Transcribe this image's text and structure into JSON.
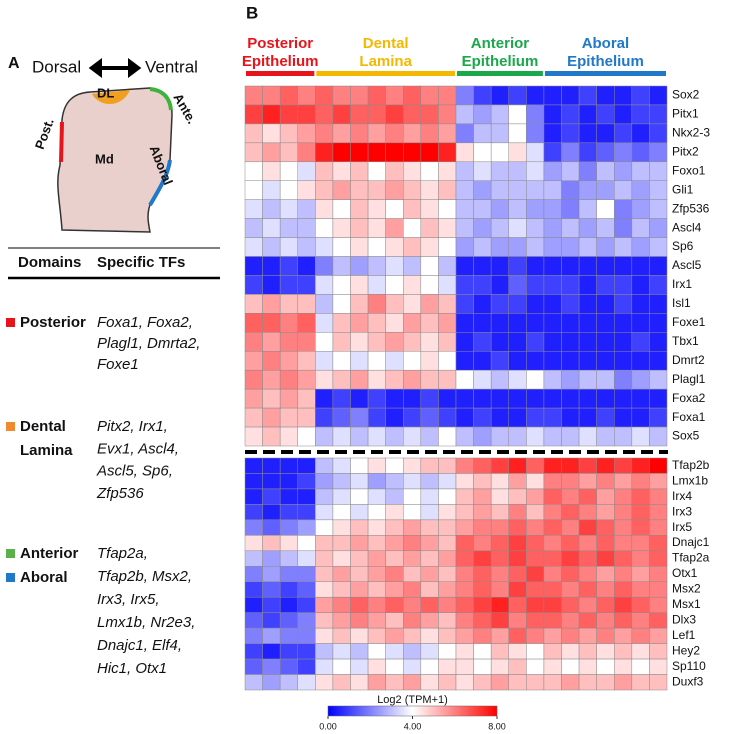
{
  "panel_a": {
    "label": "A",
    "axis": {
      "left": "Dorsal",
      "right": "Ventral"
    },
    "diagram": {
      "dl": "DL",
      "anterior": "Ante.",
      "posterior": "Post.",
      "md": "Md",
      "aboral": "Aboral"
    },
    "table": {
      "headers": [
        "Domains",
        "Specific TFs"
      ],
      "rows": [
        {
          "domains": [
            {
              "name": [
                "Posterior"
              ],
              "color": "#e8141c"
            }
          ],
          "tfs": [
            "Foxa1, Foxa2,",
            "Plagl1, Dmrta2,",
            "Foxe1"
          ]
        },
        {
          "domains": [
            {
              "name": [
                "Dental",
                "Lamina"
              ],
              "color": "#f08a2c"
            }
          ],
          "tfs": [
            "Pitx2, Irx1,",
            "Evx1, Ascl4,",
            "Ascl5, Sp6,",
            "Zfp536"
          ]
        },
        {
          "domains": [
            {
              "name": [
                "Anterior"
              ],
              "color": "#5ab14a"
            },
            {
              "name": [
                "Aboral"
              ],
              "color": "#1f78c8"
            }
          ],
          "tfs": [
            "Tfap2a,",
            "Tfap2b, Msx2,",
            "Irx3, Irx5,",
            "Lmx1b, Nr2e3,",
            "Dnajc1, Elf4,",
            "Hic1, Otx1"
          ]
        }
      ]
    }
  },
  "chart_data": {
    "type": "heatmap",
    "label": "B",
    "groups": [
      {
        "name": [
          "Posterior",
          "Epithelium"
        ],
        "color": "#e8141c",
        "columns": 4
      },
      {
        "name": [
          "Dental",
          "Lamina"
        ],
        "color": "#f5b800",
        "columns": 8
      },
      {
        "name": [
          "Anterior",
          "Epithelium"
        ],
        "color": "#1aa84a",
        "columns": 5
      },
      {
        "name": [
          "Aboral",
          "Epithelium"
        ],
        "color": "#1f78c8",
        "columns": 7
      }
    ],
    "colormap": [
      "#0000ff",
      "#ffffff",
      "#ff0000"
    ],
    "clim": [
      0,
      8
    ],
    "cticks": [
      {
        "value": 0,
        "label": "0.00"
      },
      {
        "value": 4,
        "label": "4.00"
      },
      {
        "value": 8,
        "label": "8.00"
      }
    ],
    "colorbar_label": "Log2 (TPM+1)",
    "blocks": [
      {
        "rows": [
          "Sox2",
          "Pitx1",
          "Nkx2-3",
          "Pitx2",
          "Foxo1",
          "Gli1",
          "Zfp536",
          "Ascl4",
          "Sp6",
          "Ascl5",
          "Irx1",
          "Isl1",
          "Foxe1",
          "Tbx1",
          "Dmrt2",
          "Plagl1",
          "Foxa2",
          "Foxa1",
          "Sox5"
        ],
        "values": [
          [
            6,
            6,
            6.5,
            6,
            6.5,
            6,
            6,
            6.5,
            6,
            6.5,
            6,
            6,
            2,
            1,
            0.5,
            1,
            0.5,
            0.5,
            0.5,
            1,
            0.5,
            0.5,
            1,
            0.5
          ],
          [
            7,
            7.5,
            7,
            7,
            6.5,
            7,
            6.5,
            6.5,
            7,
            6.5,
            6.5,
            6,
            3,
            2.5,
            3,
            4,
            2,
            0.5,
            1,
            0.5,
            1,
            0.5,
            1,
            1
          ],
          [
            5,
            4.5,
            5,
            5.5,
            6,
            5.5,
            6,
            5.5,
            6,
            5.5,
            6,
            5.5,
            2,
            3,
            3,
            4,
            2,
            0.5,
            1,
            0.5,
            0.5,
            1,
            0.5,
            1
          ],
          [
            5,
            5.5,
            5,
            6,
            7.5,
            8,
            8,
            8,
            8,
            8,
            8,
            7.5,
            4.5,
            4,
            4,
            4.5,
            3.5,
            1,
            2,
            1,
            1.5,
            2,
            1.5,
            2
          ],
          [
            4,
            4.5,
            4,
            3.5,
            5,
            4.5,
            5,
            4,
            5,
            4.5,
            4,
            4.5,
            3,
            3.5,
            3,
            3,
            3.5,
            2.5,
            3,
            2,
            3,
            2.5,
            3,
            3
          ],
          [
            4,
            3.5,
            4,
            4.5,
            5,
            5.5,
            5,
            5,
            5.5,
            5,
            4.5,
            5,
            3,
            2.5,
            3,
            3,
            3,
            3,
            2,
            2.5,
            2.5,
            3,
            2.5,
            3
          ],
          [
            3.5,
            3,
            3.5,
            3,
            4.5,
            4,
            5,
            4.5,
            4,
            5,
            4.5,
            4,
            3,
            3,
            2.5,
            3,
            2.5,
            2.5,
            2,
            3,
            4,
            2,
            2.5,
            3
          ],
          [
            3,
            3.5,
            3,
            3,
            4,
            4.5,
            5,
            4.5,
            5.5,
            4,
            5,
            4.5,
            3,
            2.5,
            3,
            3.5,
            3,
            2.5,
            3,
            2.5,
            3,
            2,
            3,
            2.5
          ],
          [
            3.5,
            3,
            3.5,
            3,
            3.5,
            4,
            4.5,
            4,
            4.5,
            5,
            4.5,
            4,
            2.5,
            3,
            2.5,
            2.5,
            3,
            2.5,
            2.5,
            3,
            2.5,
            3,
            2.5,
            3
          ],
          [
            0.5,
            0.5,
            1,
            0.5,
            2,
            3,
            2.5,
            3,
            3.5,
            3,
            4,
            3,
            0.5,
            0.5,
            0.5,
            1,
            0.5,
            0.5,
            0.5,
            0.5,
            0.5,
            0.5,
            0.5,
            0.5
          ],
          [
            1,
            0.5,
            1,
            1,
            3.5,
            4,
            4.5,
            3.5,
            4,
            4.5,
            4,
            3.5,
            1,
            1,
            0.5,
            1.5,
            1,
            1,
            1,
            0.5,
            1,
            1,
            0.5,
            1
          ],
          [
            5,
            5.5,
            5,
            5,
            3,
            4,
            5,
            6,
            5,
            4.5,
            5.5,
            5,
            1,
            0.5,
            1,
            1,
            0.5,
            0.5,
            1,
            0.5,
            0.5,
            1,
            0.5,
            0.5
          ],
          [
            6.5,
            6.5,
            6,
            6.5,
            3.5,
            5,
            5.5,
            5,
            4.5,
            5.5,
            5,
            5.5,
            0.5,
            0.5,
            0.5,
            0.5,
            0.5,
            0.5,
            0.5,
            0.5,
            0.5,
            0.5,
            0.5,
            0.5
          ],
          [
            6,
            5.5,
            6,
            6,
            4,
            5,
            4.5,
            5,
            5.5,
            5,
            4.5,
            5,
            0.5,
            1,
            0.5,
            0.5,
            1,
            0.5,
            0.5,
            0.5,
            0.5,
            0.5,
            1,
            0.5
          ],
          [
            5.5,
            6,
            5.5,
            5,
            3.5,
            4,
            3.5,
            4,
            3.5,
            4,
            4.5,
            4,
            0.5,
            0.5,
            1,
            0.5,
            0.5,
            0.5,
            0.5,
            0.5,
            0.5,
            0.5,
            0.5,
            0.5
          ],
          [
            6,
            5.5,
            6,
            5.5,
            4.5,
            5,
            5.5,
            4.5,
            5,
            5.5,
            5,
            5,
            4,
            3.5,
            3,
            3.5,
            4,
            3,
            2.5,
            3,
            3,
            2,
            2.5,
            3
          ],
          [
            5.5,
            5,
            5.5,
            5,
            0.5,
            1,
            0.5,
            1,
            0.5,
            0.5,
            1,
            0.5,
            0.5,
            0.5,
            0.5,
            0.5,
            0.5,
            0.5,
            0.5,
            0.5,
            0.5,
            0.5,
            0.5,
            0.5
          ],
          [
            5,
            5.5,
            5,
            5,
            1,
            1.5,
            2,
            1,
            0.5,
            1,
            1.5,
            1,
            0.5,
            1,
            0.5,
            0.5,
            1,
            1,
            0.5,
            0.5,
            1,
            0.5,
            0.5,
            1
          ],
          [
            4.5,
            5,
            4.5,
            4,
            3,
            3.5,
            3,
            3.5,
            3,
            3.5,
            3,
            4,
            3,
            2.5,
            3,
            3,
            3.5,
            3,
            3,
            3.5,
            3,
            3,
            3.5,
            3
          ]
        ]
      },
      {
        "rows": [
          "Tfap2b",
          "Lmx1b",
          "Irx4",
          "Irx3",
          "Irx5",
          "Dnajc1",
          "Tfap2a",
          "Otx1",
          "Msx2",
          "Msx1",
          "Dlx3",
          "Lef1",
          "Hey2",
          "Sp110",
          "Duxf3"
        ],
        "values": [
          [
            0.5,
            0.5,
            0.5,
            0.5,
            3,
            3.5,
            4,
            4.5,
            4,
            4.5,
            5,
            5,
            6,
            6.5,
            7,
            7.5,
            6.5,
            7.5,
            7.5,
            7,
            7.5,
            7,
            7.5,
            8
          ],
          [
            0.5,
            0.5,
            0.5,
            1,
            2.5,
            3,
            3.5,
            2.5,
            3,
            3.5,
            3,
            3.5,
            4.5,
            5,
            4.5,
            5.5,
            4.5,
            6,
            6,
            5.5,
            6,
            5.5,
            6,
            5.5
          ],
          [
            0.5,
            1,
            0.5,
            0.5,
            3,
            3.5,
            4,
            3.5,
            3,
            4,
            3.5,
            4,
            5,
            5.5,
            4.5,
            5,
            5.5,
            6.5,
            6,
            6.5,
            5.5,
            6,
            6.5,
            6
          ],
          [
            1,
            0.5,
            1,
            1,
            3.5,
            4,
            3.5,
            4,
            4.5,
            4,
            3.5,
            4.5,
            5,
            5.5,
            5,
            6,
            5,
            6,
            6.5,
            6,
            5.5,
            6,
            6.5,
            6
          ],
          [
            2,
            1.5,
            2,
            2.5,
            4,
            4.5,
            5,
            4.5,
            5,
            5.5,
            5,
            5,
            5.5,
            6,
            6,
            6.5,
            6,
            6.5,
            6,
            7,
            6.5,
            6,
            6.5,
            6
          ],
          [
            4.5,
            5,
            4.5,
            4,
            5,
            5,
            5.5,
            5,
            5.5,
            6,
            5.5,
            5,
            6.5,
            6,
            6.5,
            7,
            6.5,
            6,
            6.5,
            6,
            6.5,
            6,
            6,
            6.5
          ],
          [
            3,
            2.5,
            3,
            3.5,
            5,
            4.5,
            5,
            5.5,
            5,
            5.5,
            5,
            5.5,
            6.5,
            7,
            6.5,
            7,
            6.5,
            6.5,
            7,
            6.5,
            7,
            6.5,
            6,
            6.5
          ],
          [
            2,
            2.5,
            2,
            2,
            5,
            5.5,
            5,
            5.5,
            6,
            5,
            5.5,
            5,
            6,
            6.5,
            6,
            6.5,
            7,
            6,
            6.5,
            6,
            5.5,
            6,
            5.5,
            6
          ],
          [
            1,
            1.5,
            1,
            1.5,
            4.5,
            5,
            5.5,
            5,
            5.5,
            6,
            5,
            5.5,
            6,
            6.5,
            6,
            7,
            6.5,
            6.5,
            6,
            6.5,
            6,
            6.5,
            6,
            6
          ],
          [
            0.5,
            1,
            0.5,
            1,
            5.5,
            6,
            6.5,
            6,
            6.5,
            6,
            6.5,
            6,
            6.5,
            7,
            7.5,
            6.5,
            7,
            7,
            6.5,
            6,
            6.5,
            7,
            6.5,
            6
          ],
          [
            1.5,
            1,
            1.5,
            2,
            5,
            5.5,
            6,
            5.5,
            5,
            6,
            5.5,
            5,
            6,
            6.5,
            7,
            6,
            6.5,
            6.5,
            6,
            6.5,
            6,
            6.5,
            6,
            6.5
          ],
          [
            2,
            2.5,
            2,
            2,
            4.5,
            5,
            4.5,
            5,
            5.5,
            5,
            4.5,
            5,
            5.5,
            6,
            5.5,
            6.5,
            6,
            5.5,
            6,
            5.5,
            6,
            5.5,
            6,
            5.5
          ],
          [
            1,
            0.5,
            1,
            1,
            3,
            3.5,
            3,
            4,
            3.5,
            3,
            3.5,
            4,
            4.5,
            4,
            5,
            4.5,
            4,
            5,
            4.5,
            5,
            4.5,
            5,
            4.5,
            5
          ],
          [
            1.5,
            2,
            1.5,
            1,
            3.5,
            4,
            3.5,
            4.5,
            4,
            3.5,
            4,
            4.5,
            4.5,
            4,
            4.5,
            5,
            4,
            4.5,
            4,
            4.5,
            4,
            4.5,
            4,
            4.5
          ],
          [
            3,
            2.5,
            3,
            3.5,
            4.5,
            5,
            4.5,
            5.5,
            5,
            5.5,
            4.5,
            5,
            4.5,
            5,
            5.5,
            5,
            5,
            5,
            5.5,
            5,
            5,
            5.5,
            5,
            5
          ]
        ]
      }
    ]
  }
}
